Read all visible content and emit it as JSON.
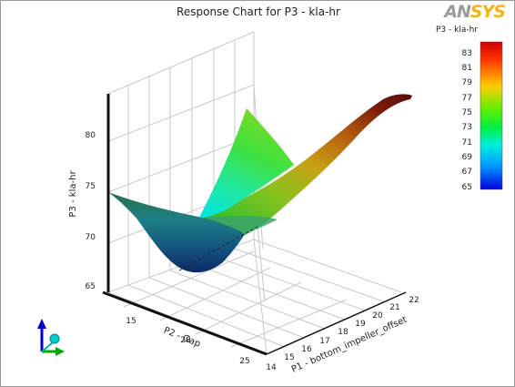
{
  "header": {
    "title": "Response Chart for P3 - kla-hr",
    "logo_text": "ANSYS"
  },
  "colorbar": {
    "label": "P3 - kla-hr",
    "ticks": [
      "83",
      "81",
      "79",
      "77",
      "75",
      "73",
      "71",
      "69",
      "67",
      "65"
    ],
    "colors": [
      "#cc0000",
      "#ff3300",
      "#ffcc00",
      "#66ee00",
      "#00ee44",
      "#00eedd",
      "#0099ff",
      "#0000dd"
    ]
  },
  "chart_data": {
    "type": "surface3d",
    "title": "Response Chart for P3 - kla-hr",
    "x_axis": {
      "label": "P1 - bottom_impeller_offset",
      "range": [
        14,
        22
      ],
      "ticks": [
        "14",
        "15",
        "16",
        "17",
        "18",
        "19",
        "20",
        "21",
        "22"
      ]
    },
    "y_axis": {
      "label": "P2 - Gap",
      "range": [
        13,
        25
      ],
      "ticks": [
        "15",
        "20",
        "25"
      ]
    },
    "z_axis": {
      "label": "P3 - kla-hr",
      "range": [
        65,
        83
      ],
      "ticks": [
        "65",
        "70",
        "75",
        "80"
      ]
    },
    "grid": true,
    "colormap_range": [
      65,
      83
    ],
    "surface_description": "Response surface with a minimum near 66 at low P1 and mid P2, rising to about 83 at high P1"
  },
  "triad": {
    "colors": [
      "#0000cc",
      "#00aa00",
      "#00cccc"
    ]
  }
}
